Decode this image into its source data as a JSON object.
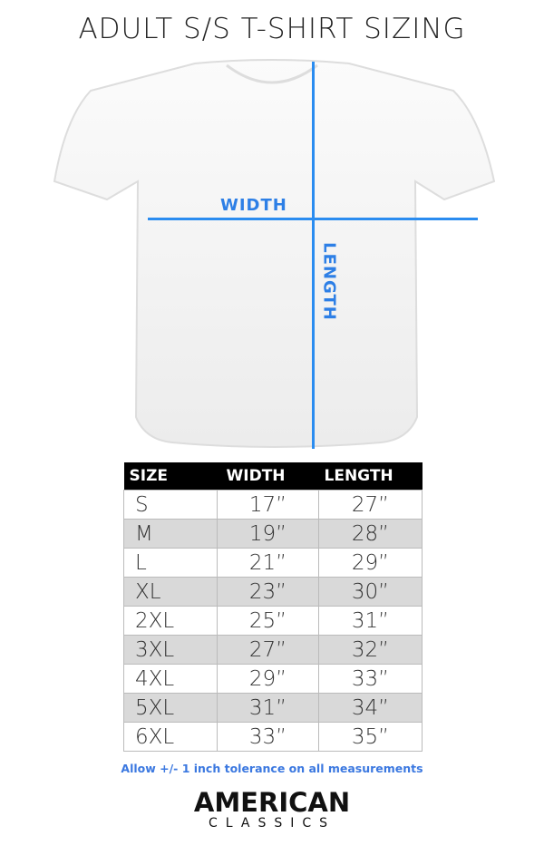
{
  "title": "ADULT S/S T-SHIRT SIZING",
  "diagram": {
    "width_label": "WIDTH",
    "length_label": "LENGTH",
    "line_color": "#2a8cf0"
  },
  "table": {
    "headers": [
      "SIZE",
      "WIDTH",
      "LENGTH"
    ],
    "rows": [
      [
        "S",
        "17”",
        "27”"
      ],
      [
        "M",
        "19”",
        "28”"
      ],
      [
        "L",
        "21”",
        "29”"
      ],
      [
        "XL",
        "23”",
        "30”"
      ],
      [
        "2XL",
        "25”",
        "31”"
      ],
      [
        "3XL",
        "27”",
        "32”"
      ],
      [
        "4XL",
        "29”",
        "33”"
      ],
      [
        "5XL",
        "31”",
        "34”"
      ],
      [
        "6XL",
        "33”",
        "35”"
      ]
    ]
  },
  "note": "Allow +/- 1 inch tolerance on all measurements",
  "logo": {
    "line1": "AMERICAN",
    "line2": "CLASSICS"
  }
}
